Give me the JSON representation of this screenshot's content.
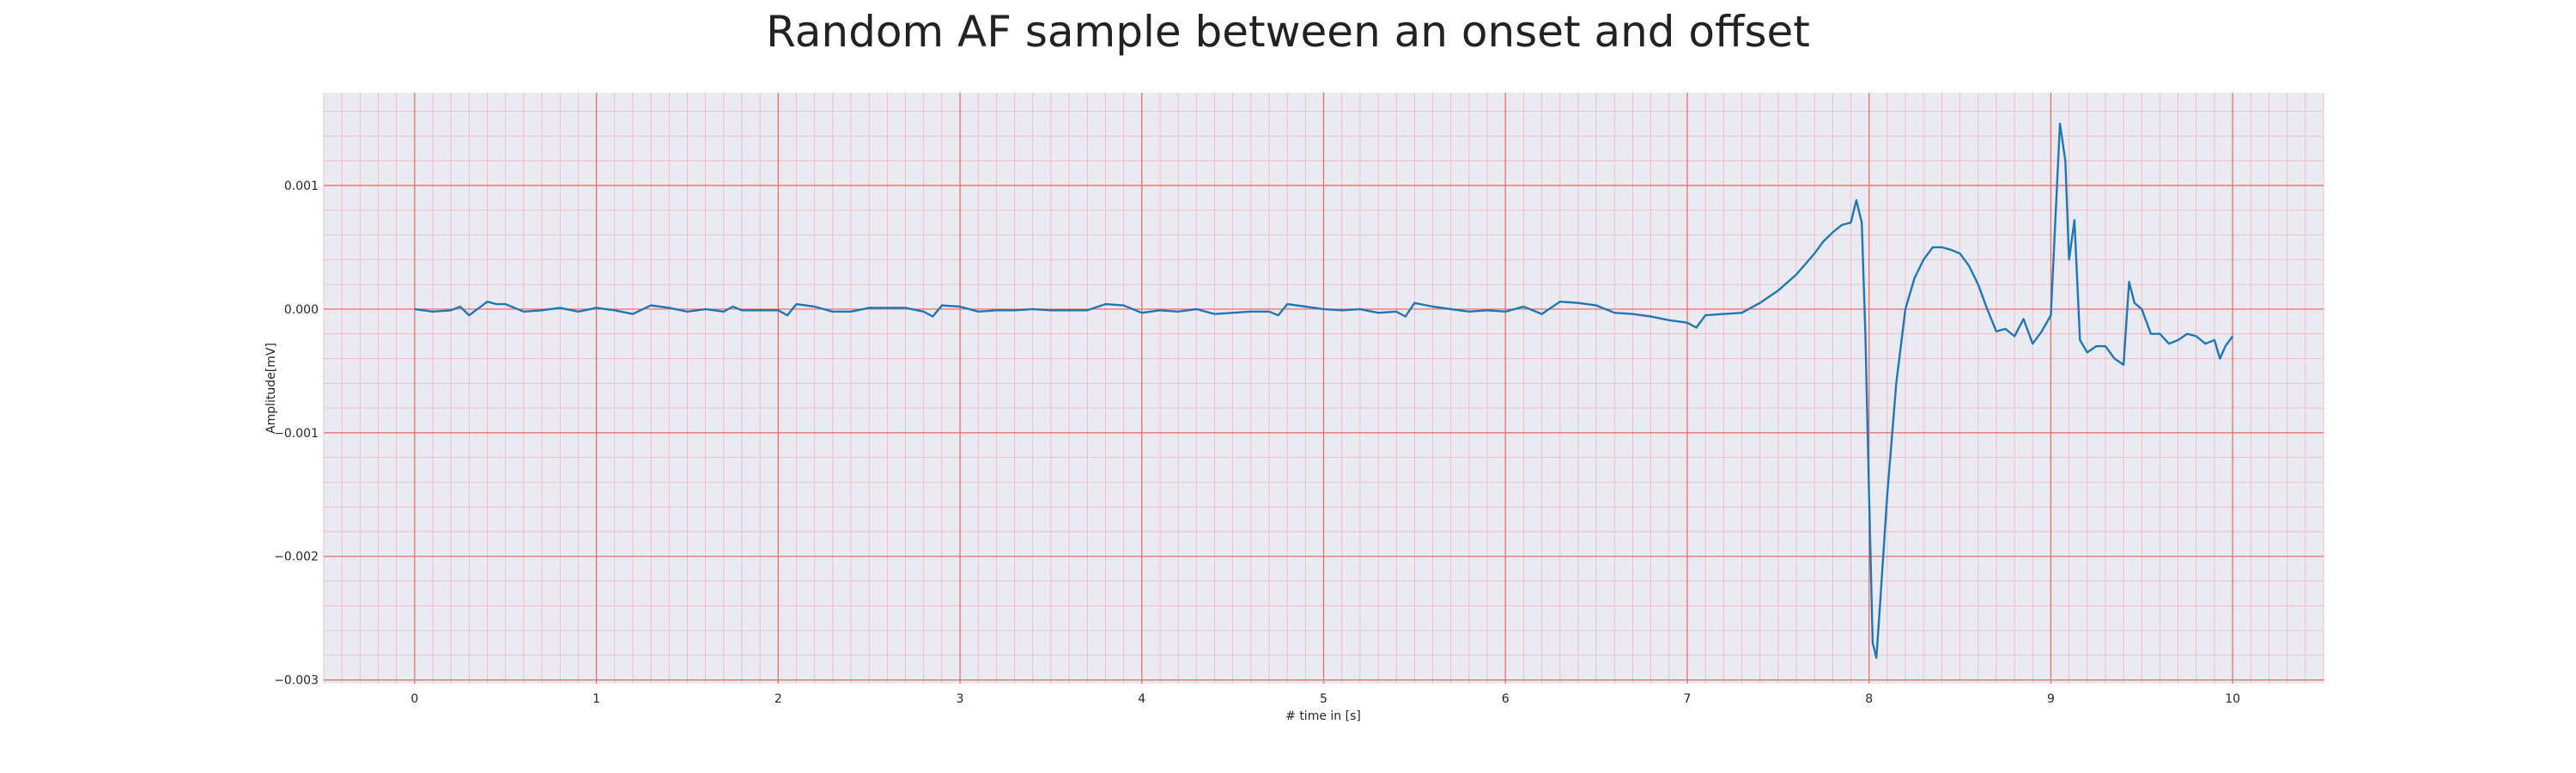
{
  "chart_data": {
    "type": "line",
    "title": "Random AF sample between an onset and offset",
    "xlabel": "# time in [s]",
    "ylabel": "Amplitude[mV]",
    "xlim": [
      -0.5,
      10.5
    ],
    "ylim": [
      -0.00303,
      0.00175
    ],
    "x_ticks": [
      0,
      1,
      2,
      3,
      4,
      5,
      6,
      7,
      8,
      9,
      10
    ],
    "x_tick_labels": [
      "0",
      "1",
      "2",
      "3",
      "4",
      "5",
      "6",
      "7",
      "8",
      "9",
      "10"
    ],
    "y_ticks": [
      0.001,
      0.0,
      -0.001,
      -0.002,
      -0.003
    ],
    "y_tick_labels": [
      "0.001",
      "0.000",
      "−0.001",
      "−0.002",
      "−0.003"
    ],
    "grid": "major and minor",
    "colors": {
      "background": "#eaeaf2",
      "major_grid": "#e8706a",
      "minor_grid": "#f3b5c0",
      "line": "#1f77b4"
    },
    "series": [
      {
        "x": [
          0.0,
          0.1,
          0.2,
          0.25,
          0.3,
          0.4,
          0.45,
          0.5,
          0.6,
          0.7,
          0.8,
          0.9,
          1.0,
          1.1,
          1.2,
          1.3,
          1.4,
          1.5,
          1.6,
          1.7,
          1.75,
          1.8,
          1.9,
          2.0,
          2.05,
          2.1,
          2.2,
          2.3,
          2.4,
          2.5,
          2.6,
          2.7,
          2.8,
          2.85,
          2.9,
          3.0,
          3.1,
          3.2,
          3.3,
          3.4,
          3.5,
          3.6,
          3.7,
          3.8,
          3.9,
          4.0,
          4.1,
          4.2,
          4.3,
          4.4,
          4.5,
          4.6,
          4.7,
          4.75,
          4.8,
          4.9,
          5.0,
          5.1,
          5.2,
          5.3,
          5.4,
          5.45,
          5.5,
          5.6,
          5.7,
          5.8,
          5.9,
          6.0,
          6.1,
          6.2,
          6.3,
          6.4,
          6.5,
          6.6,
          6.7,
          6.8,
          6.9,
          7.0,
          7.05,
          7.1,
          7.2,
          7.3,
          7.4,
          7.5,
          7.6,
          7.7,
          7.75,
          7.8,
          7.85,
          7.9,
          7.93,
          7.96,
          7.98,
          8.0,
          8.02,
          8.04,
          8.06,
          8.1,
          8.15,
          8.2,
          8.25,
          8.3,
          8.35,
          8.4,
          8.45,
          8.5,
          8.55,
          8.6,
          8.65,
          8.7,
          8.75,
          8.8,
          8.85,
          8.9,
          8.95,
          9.0,
          9.05,
          9.08,
          9.1,
          9.13,
          9.16,
          9.2,
          9.25,
          9.3,
          9.35,
          9.4,
          9.43,
          9.46,
          9.5,
          9.55,
          9.6,
          9.65,
          9.7,
          9.75,
          9.8,
          9.85,
          9.9,
          9.93,
          9.96,
          10.0
        ],
        "y": [
          0.0,
          -2e-05,
          -1e-05,
          2e-05,
          -5e-05,
          6e-05,
          4e-05,
          4e-05,
          -2e-05,
          -1e-05,
          1e-05,
          -2e-05,
          1e-05,
          -1e-05,
          -4e-05,
          3e-05,
          1e-05,
          -2e-05,
          0.0,
          -2e-05,
          2e-05,
          -1e-05,
          -1e-05,
          -1e-05,
          -5e-05,
          4e-05,
          2e-05,
          -2e-05,
          -2e-05,
          1e-05,
          1e-05,
          1e-05,
          -2e-05,
          -6e-05,
          3e-05,
          2e-05,
          -2e-05,
          -1e-05,
          -1e-05,
          0.0,
          -1e-05,
          -1e-05,
          -1e-05,
          4e-05,
          3e-05,
          -3e-05,
          -1e-05,
          -2e-05,
          0.0,
          -4e-05,
          -3e-05,
          -2e-05,
          -2e-05,
          -5e-05,
          4e-05,
          2e-05,
          0.0,
          -1e-05,
          0.0,
          -3e-05,
          -2e-05,
          -6e-05,
          5e-05,
          2e-05,
          0.0,
          -2e-05,
          -1e-05,
          -2e-05,
          2e-05,
          -4e-05,
          6e-05,
          5e-05,
          3e-05,
          -3e-05,
          -4e-05,
          -6e-05,
          -9e-05,
          -0.00011,
          -0.00015,
          -5e-05,
          -4e-05,
          -3e-05,
          5e-05,
          0.00015,
          0.00028,
          0.00045,
          0.00055,
          0.00062,
          0.00068,
          0.0007,
          0.00088,
          0.0007,
          -0.0002,
          -0.0015,
          -0.0027,
          -0.00282,
          -0.0024,
          -0.0015,
          -0.0006,
          0.0,
          0.00025,
          0.0004,
          0.0005,
          0.0005,
          0.00048,
          0.00045,
          0.00035,
          0.0002,
          0.0,
          -0.00018,
          -0.00016,
          -0.00022,
          -8e-05,
          -0.00028,
          -0.00018,
          -5e-05,
          0.0015,
          0.0012,
          0.0004,
          0.00072,
          -0.00025,
          -0.00035,
          -0.0003,
          -0.0003,
          -0.0004,
          -0.00045,
          0.00022,
          5e-05,
          0.0,
          -0.0002,
          -0.0002,
          -0.00028,
          -0.00025,
          -0.0002,
          -0.00022,
          -0.00028,
          -0.00025,
          -0.0004,
          -0.0003,
          -0.00022
        ]
      }
    ]
  }
}
